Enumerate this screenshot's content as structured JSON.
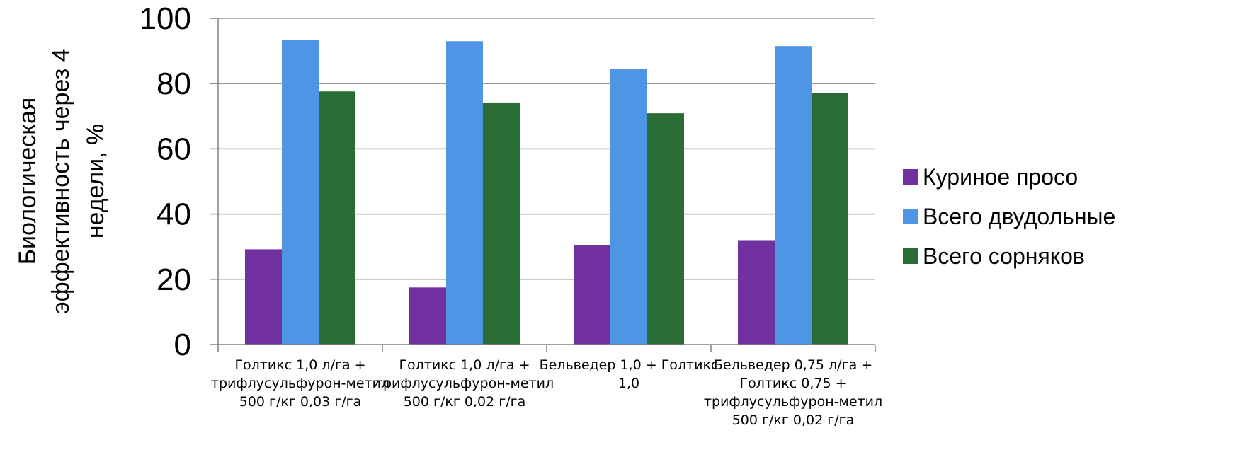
{
  "chart_data": {
    "type": "bar",
    "ylabel": [
      "Биологическая",
      "эффективность через  4",
      "недели, %"
    ],
    "ylim": [
      0,
      100
    ],
    "yticks": [
      0,
      20,
      40,
      60,
      80,
      100
    ],
    "grid": true,
    "legend_position": "right",
    "categories": [
      [
        "Голтикс 1,0 л/га +",
        "трифлусульфурон-метил",
        "500 г/кг 0,03 г/га"
      ],
      [
        "Голтикс 1,0 л/га +",
        "трифлусульфурон-метил",
        "500 г/кг 0,02 г/га"
      ],
      [
        "Бельведер 1,0 + Голтикс",
        "1,0"
      ],
      [
        "Бельведер 0,75 л/га +",
        "Голтикс 0,75 +",
        "трифлусульфурон-метил",
        "500 г/кг 0,02 г/га"
      ]
    ],
    "series": [
      {
        "name": "Куриное просо",
        "color": "#7030A0",
        "values": [
          29.2,
          17.5,
          30.5,
          32.0
        ]
      },
      {
        "name": "Всего двудольные",
        "color": "#4F95E5",
        "values": [
          93.3,
          93.0,
          84.6,
          91.5
        ]
      },
      {
        "name": "Всего сорняков",
        "color": "#2A6C35",
        "values": [
          77.6,
          74.2,
          70.9,
          77.2
        ]
      }
    ]
  }
}
